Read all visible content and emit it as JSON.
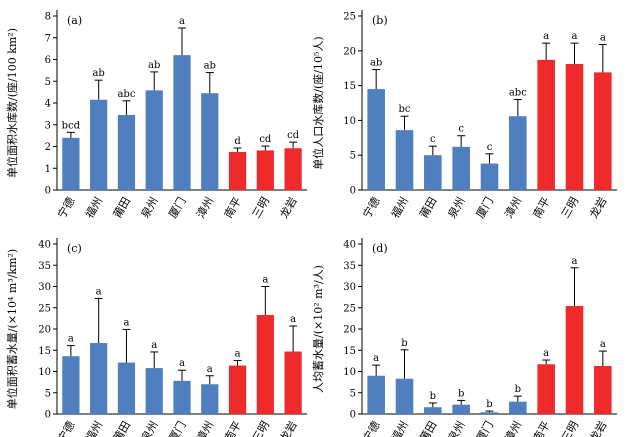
{
  "colors": {
    "fujian_east": "#4f7fbf",
    "fujian_west": "#ee2a2a"
  },
  "chart_data": [
    {
      "type": "bar",
      "panel": "(a)",
      "ylabel": "单位面积水库数/(座/100 km²)",
      "ylim": [
        0,
        8
      ],
      "yticks": [
        0,
        1,
        2,
        3,
        4,
        5,
        6,
        7,
        8
      ],
      "categories": [
        "宁德",
        "福州",
        "莆田",
        "泉州",
        "厦门",
        "漳州",
        "南平",
        "三明",
        "龙岩"
      ],
      "values": [
        2.4,
        4.15,
        3.45,
        4.58,
        6.2,
        4.45,
        1.75,
        1.82,
        1.92
      ],
      "errors": [
        0.25,
        0.9,
        0.65,
        0.85,
        1.25,
        0.95,
        0.18,
        0.2,
        0.28
      ],
      "sig": [
        "bcd",
        "ab",
        "abc",
        "ab",
        "a",
        "ab",
        "d",
        "cd",
        "cd"
      ],
      "bar_colors": [
        "fujian_east",
        "fujian_east",
        "fujian_east",
        "fujian_east",
        "fujian_east",
        "fujian_east",
        "fujian_west",
        "fujian_west",
        "fujian_west"
      ]
    },
    {
      "type": "bar",
      "panel": "(b)",
      "ylabel": "单位人口水库数/(座/10⁵人)",
      "ylim": [
        0,
        25
      ],
      "yticks": [
        0,
        5,
        10,
        15,
        20,
        25
      ],
      "categories": [
        "宁德",
        "福州",
        "莆田",
        "泉州",
        "厦门",
        "漳州",
        "南平",
        "三明",
        "龙岩"
      ],
      "values": [
        14.5,
        8.6,
        5.0,
        6.2,
        3.8,
        10.6,
        18.7,
        18.1,
        16.9
      ],
      "errors": [
        2.8,
        2.0,
        1.3,
        1.6,
        1.4,
        2.4,
        2.4,
        3.0,
        4.0
      ],
      "sig": [
        "ab",
        "bc",
        "c",
        "c",
        "c",
        "abc",
        "a",
        "a",
        "a"
      ],
      "bar_colors": [
        "fujian_east",
        "fujian_east",
        "fujian_east",
        "fujian_east",
        "fujian_east",
        "fujian_east",
        "fujian_west",
        "fujian_west",
        "fujian_west"
      ]
    },
    {
      "type": "bar",
      "panel": "(c)",
      "ylabel": "单位面积蓄水量/(×10⁴ m³/km²)",
      "ylim": [
        0,
        40
      ],
      "yticks": [
        0,
        5,
        10,
        15,
        20,
        25,
        30,
        35,
        40
      ],
      "categories": [
        "宁德",
        "福州",
        "莆田",
        "泉州",
        "厦门",
        "漳州",
        "南平",
        "三明",
        "龙岩"
      ],
      "values": [
        13.6,
        16.7,
        12.1,
        10.8,
        7.8,
        7.0,
        11.4,
        23.3,
        14.7
      ],
      "errors": [
        2.5,
        10.5,
        7.8,
        3.8,
        2.5,
        2.0,
        1.2,
        6.7,
        6.0
      ],
      "sig": [
        "a",
        "a",
        "a",
        "a",
        "a",
        "a",
        "a",
        "a",
        "a"
      ],
      "bar_colors": [
        "fujian_east",
        "fujian_east",
        "fujian_east",
        "fujian_east",
        "fujian_east",
        "fujian_east",
        "fujian_west",
        "fujian_west",
        "fujian_west"
      ]
    },
    {
      "type": "bar",
      "panel": "(d)",
      "ylabel": "人均蓄水量/(×10² m³/人)",
      "ylim": [
        0,
        40
      ],
      "yticks": [
        0,
        5,
        10,
        15,
        20,
        25,
        30,
        35,
        40
      ],
      "categories": [
        "宁德",
        "福州",
        "莆田",
        "泉州",
        "厦门",
        "漳州",
        "南平",
        "三明",
        "龙岩"
      ],
      "values": [
        9.0,
        8.3,
        1.6,
        2.2,
        0.4,
        2.9,
        11.7,
        25.4,
        11.3
      ],
      "errors": [
        2.5,
        6.8,
        1.0,
        1.0,
        0.3,
        1.3,
        1.0,
        9.0,
        3.5
      ],
      "sig": [
        "a",
        "b",
        "b",
        "b",
        "b",
        "b",
        "a",
        "a",
        "a"
      ],
      "bar_colors": [
        "fujian_east",
        "fujian_east",
        "fujian_east",
        "fujian_east",
        "fujian_east",
        "fujian_east",
        "fujian_west",
        "fujian_west",
        "fujian_west"
      ]
    }
  ]
}
